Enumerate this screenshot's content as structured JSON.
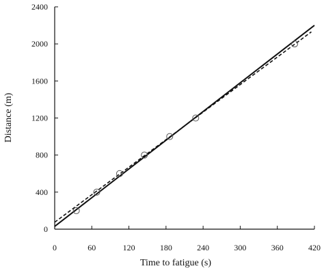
{
  "chart_data": {
    "type": "scatter",
    "title": "",
    "xlabel": "Time to fatigue (s)",
    "ylabel": "Distance (m)",
    "xlim": [
      0,
      420
    ],
    "ylim": [
      0,
      2400
    ],
    "xticks": [
      0,
      60,
      120,
      180,
      240,
      300,
      360,
      420
    ],
    "yticks": [
      0,
      400,
      800,
      1200,
      1600,
      2000,
      2400
    ],
    "grid": false,
    "legend": "none",
    "series": [
      {
        "kind": "points",
        "marker": "open-circle",
        "x": [
          35,
          68,
          105,
          145,
          186,
          228,
          388
        ],
        "y": [
          200,
          400,
          600,
          800,
          1000,
          1200,
          2000
        ]
      },
      {
        "kind": "line",
        "style": "solid",
        "x": [
          0,
          420
        ],
        "y": [
          30,
          2200
        ]
      },
      {
        "kind": "line",
        "style": "dashed",
        "x": [
          0,
          415
        ],
        "y": [
          75,
          2130
        ]
      }
    ],
    "colors": {
      "ink": "#111111",
      "marker": "#555555"
    }
  }
}
